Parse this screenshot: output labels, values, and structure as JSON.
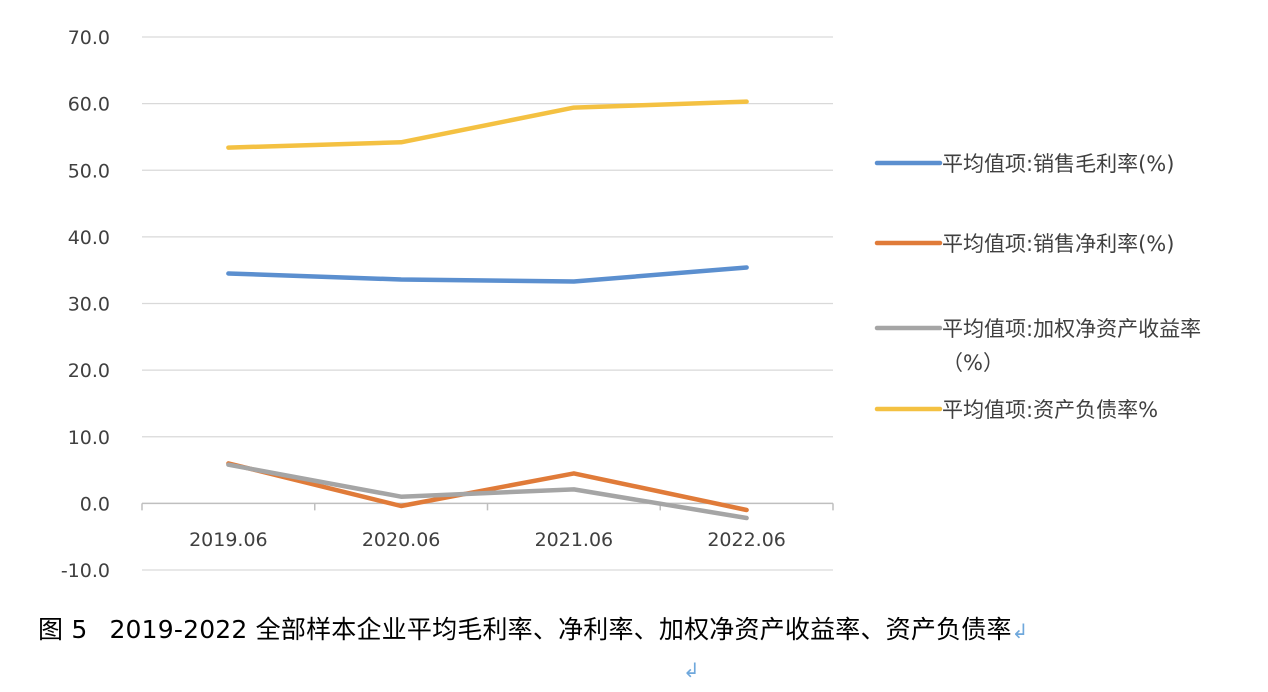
{
  "chart_data": {
    "type": "line",
    "categories": [
      "2019.06",
      "2020.06",
      "2021.06",
      "2022.06"
    ],
    "y_ticks": [
      "70.0",
      "60.0",
      "50.0",
      "40.0",
      "30.0",
      "20.0",
      "10.0",
      "0.0",
      "-10.0"
    ],
    "ylim": [
      -10,
      70
    ],
    "grid": true,
    "legend_position": "right",
    "series": [
      {
        "name": "平均值项:销售毛利率(%)",
        "color": "#5b8fcf",
        "values": [
          34.5,
          33.6,
          33.3,
          35.4
        ]
      },
      {
        "name": "平均值项:销售净利率(%)",
        "color": "#e07b39",
        "values": [
          6.0,
          -0.4,
          4.5,
          -1.0
        ]
      },
      {
        "name": "平均值项:加权净资产收益率",
        "name_line2": "（%）",
        "color": "#a5a5a5",
        "values": [
          5.8,
          1.0,
          2.1,
          -2.2
        ]
      },
      {
        "name": "平均值项:资产负债率%",
        "color": "#f4c142",
        "values": [
          53.4,
          54.2,
          59.4,
          60.3
        ]
      }
    ]
  },
  "caption": {
    "figure_no": "图 5",
    "text": "2019-2022 全部样本企业平均毛利率、净利率、加权净资产收益率、资产负债率",
    "return_mark": "↲"
  }
}
